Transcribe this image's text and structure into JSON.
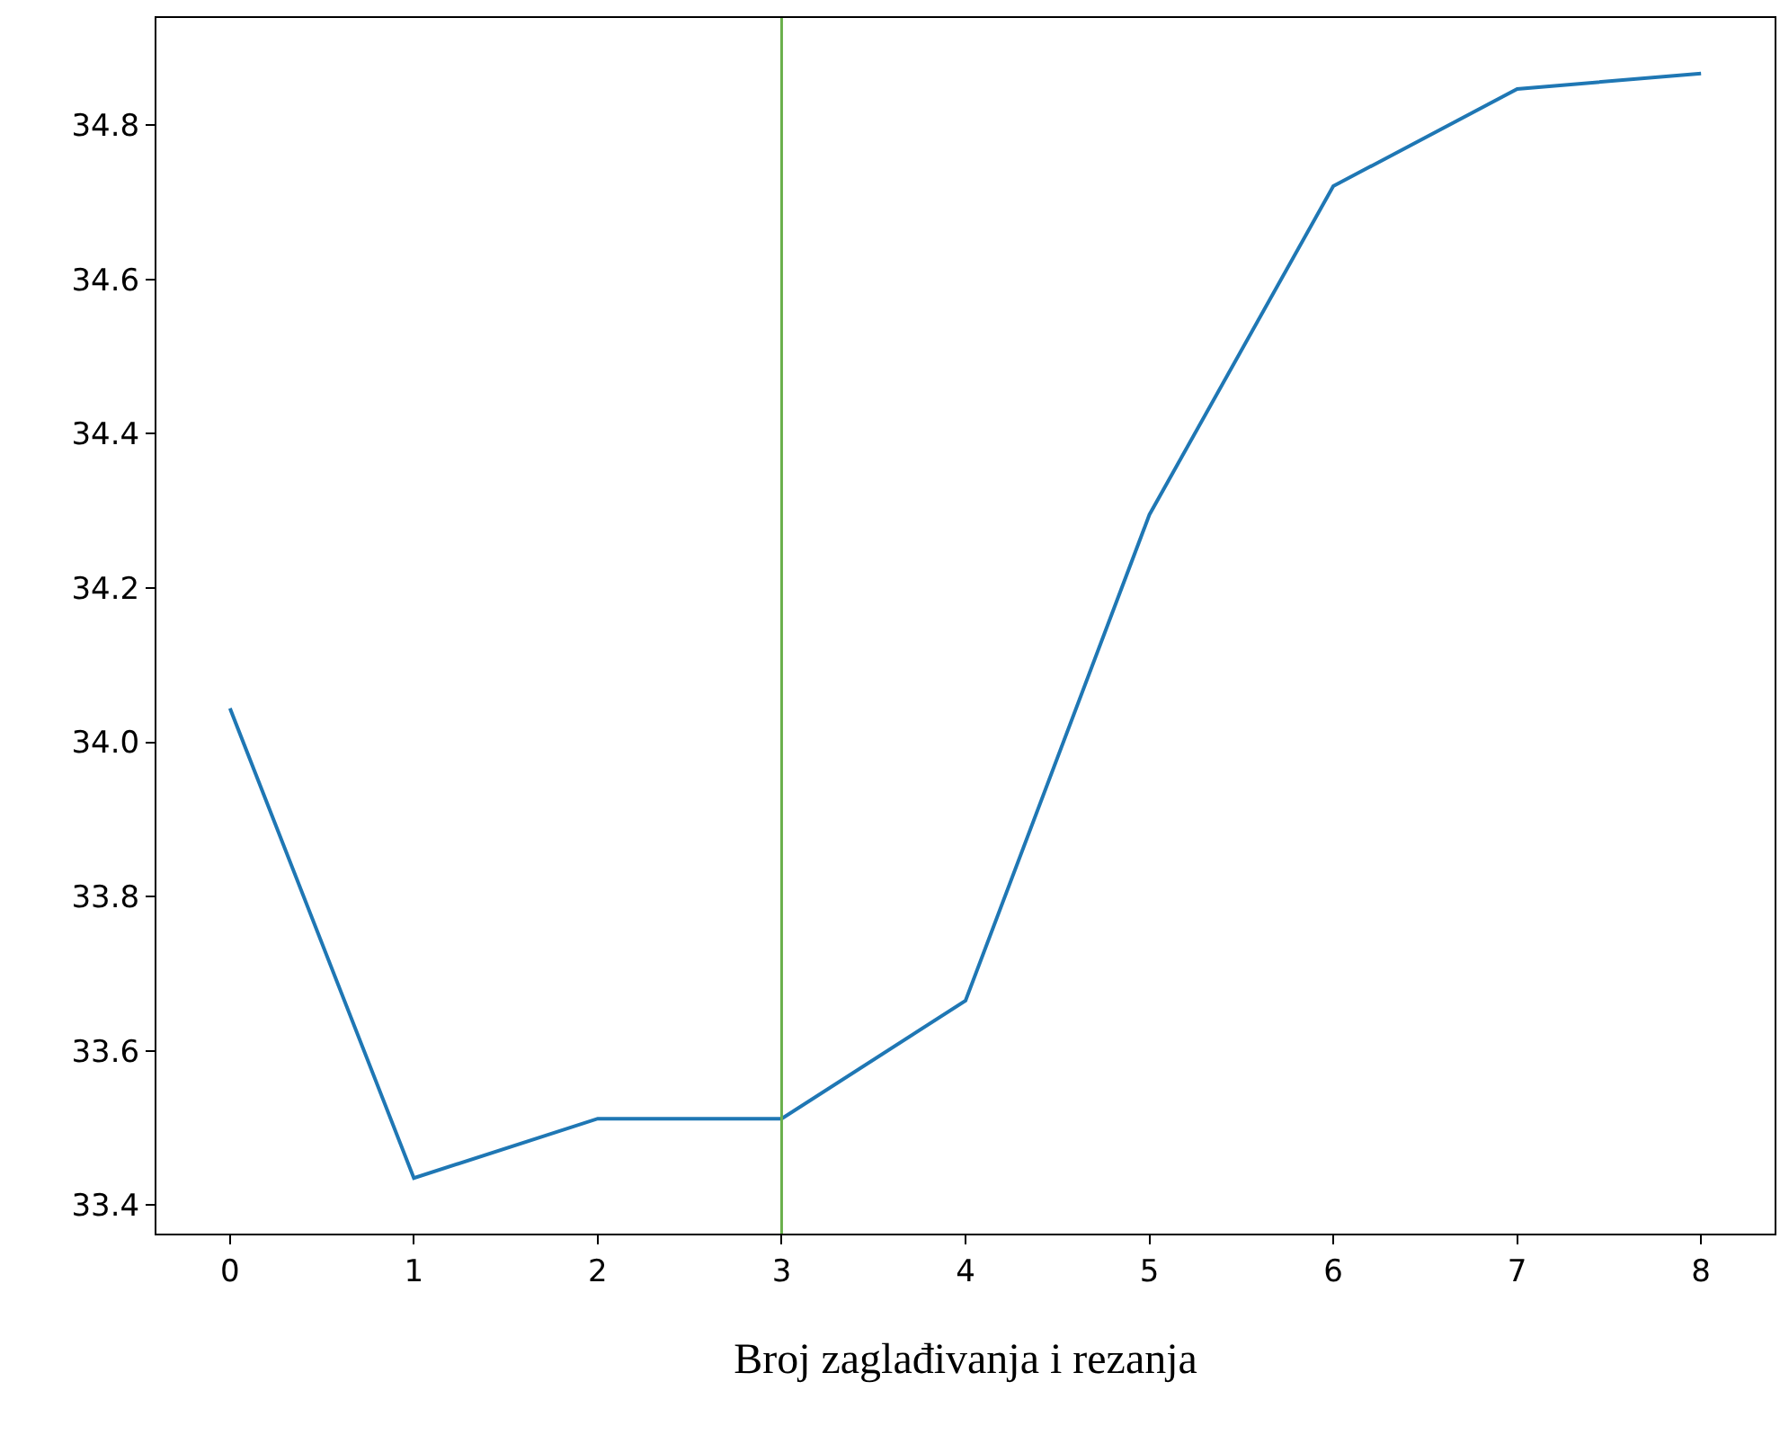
{
  "chart_data": {
    "type": "line",
    "xlabel": "Broj zaglađivanja i rezanja",
    "x": [
      0,
      1,
      2,
      3,
      4,
      5,
      6,
      7,
      8
    ],
    "series": [
      {
        "color": "#1f77b4",
        "values": [
          34.044,
          33.435,
          33.512,
          33.512,
          33.665,
          34.295,
          34.721,
          34.847,
          34.867
        ]
      }
    ],
    "xlim": [
      -0.4,
      8.4
    ],
    "xticks": [
      0,
      1,
      2,
      3,
      4,
      5,
      6,
      7,
      8
    ],
    "ylim": [
      33.363,
      34.939
    ],
    "yticks": [
      {
        "value": 33.4,
        "label": "33.4"
      },
      {
        "value": 33.6,
        "label": "33.6"
      },
      {
        "value": 33.8,
        "label": "33.8"
      },
      {
        "value": 34.0,
        "label": "34.0"
      },
      {
        "value": 34.2,
        "label": "34.2"
      },
      {
        "value": 34.4,
        "label": "34.4"
      },
      {
        "value": 34.6,
        "label": "34.6"
      },
      {
        "value": 34.8,
        "label": "34.8"
      }
    ],
    "ref_lines": [
      {
        "axis": "x",
        "value": 3,
        "color": "#6ab04c"
      }
    ]
  }
}
